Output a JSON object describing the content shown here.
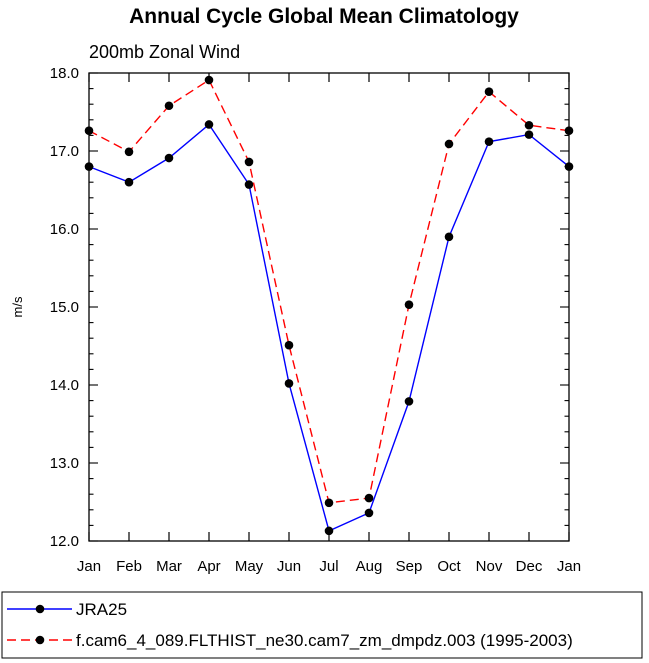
{
  "chart_data": {
    "type": "line",
    "title": "Annual Cycle Global Mean Climatology",
    "subtitle": "200mb Zonal Wind",
    "xlabel": "",
    "ylabel": "m/s",
    "categories": [
      "Jan",
      "Feb",
      "Mar",
      "Apr",
      "May",
      "Jun",
      "Jul",
      "Aug",
      "Sep",
      "Oct",
      "Nov",
      "Dec",
      "Jan"
    ],
    "ylim": [
      12.0,
      18.0
    ],
    "yticks": [
      "12.0",
      "13.0",
      "14.0",
      "15.0",
      "16.0",
      "17.0",
      "18.0"
    ],
    "grid": false,
    "legend_position": "bottom",
    "series": [
      {
        "name": "JRA25",
        "color": "#0000ff",
        "line_style": "solid",
        "marker": "filled-circle",
        "values": [
          16.8,
          16.6,
          16.91,
          17.34,
          16.57,
          14.02,
          12.13,
          12.36,
          13.79,
          15.9,
          17.12,
          17.21,
          16.8
        ]
      },
      {
        "name": "f.cam6_4_089.FLTHIST_ne30.cam7_zm_dmpdz.003 (1995-2003)",
        "color": "#ff0000",
        "line_style": "dashed",
        "marker": "filled-circle",
        "values": [
          17.26,
          16.99,
          17.58,
          17.91,
          16.86,
          14.51,
          12.49,
          12.55,
          15.03,
          17.09,
          17.76,
          17.33,
          17.26
        ]
      }
    ]
  }
}
